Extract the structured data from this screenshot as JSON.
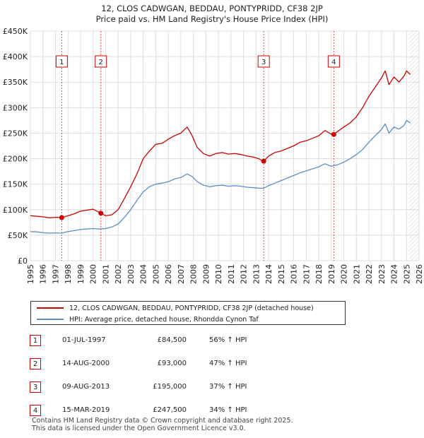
{
  "chart_data": {
    "type": "line",
    "title": "12, CLOS CADWGAN, BEDDAU, PONTYPRIDD, CF38 2JP",
    "subtitle": "Price paid vs. HM Land Registry's House Price Index (HPI)",
    "xlim": [
      1995,
      2026
    ],
    "ylim": [
      0,
      450000
    ],
    "x_ticks": [
      "1995",
      "1996",
      "1997",
      "1998",
      "1999",
      "2000",
      "2001",
      "2002",
      "2003",
      "2004",
      "2005",
      "2006",
      "2007",
      "2008",
      "2009",
      "2010",
      "2011",
      "2012",
      "2013",
      "2014",
      "2015",
      "2016",
      "2017",
      "2018",
      "2019",
      "2020",
      "2021",
      "2022",
      "2023",
      "2024",
      "2025",
      "2026"
    ],
    "y_ticks": [
      {
        "value": 0,
        "label": "£0"
      },
      {
        "value": 50000,
        "label": "£50K"
      },
      {
        "value": 100000,
        "label": "£100K"
      },
      {
        "value": 150000,
        "label": "£150K"
      },
      {
        "value": 200000,
        "label": "£200K"
      },
      {
        "value": 250000,
        "label": "£250K"
      },
      {
        "value": 300000,
        "label": "£300K"
      },
      {
        "value": 350000,
        "label": "£350K"
      },
      {
        "value": 400000,
        "label": "£400K"
      },
      {
        "value": 450000,
        "label": "£450K"
      }
    ],
    "series": [
      {
        "name": "12, CLOS CADWGAN, BEDDAU, PONTYPRIDD, CF38 2JP (detached house)",
        "color": "#cc0000",
        "x": [
          1995.0,
          1995.5,
          1996.0,
          1996.5,
          1997.0,
          1997.5,
          1998.0,
          1998.5,
          1999.0,
          1999.5,
          2000.0,
          2000.62,
          2001.0,
          2001.5,
          2002.0,
          2002.5,
          2003.0,
          2003.5,
          2004.0,
          2004.5,
          2005.0,
          2005.5,
          2006.0,
          2006.5,
          2007.0,
          2007.5,
          2007.9,
          2008.3,
          2008.8,
          2009.3,
          2009.8,
          2010.3,
          2010.8,
          2011.3,
          2011.8,
          2012.3,
          2012.8,
          2013.2,
          2013.61,
          2014.0,
          2014.5,
          2015.0,
          2015.5,
          2016.0,
          2016.5,
          2017.0,
          2017.5,
          2018.0,
          2018.5,
          2019.0,
          2019.2,
          2019.6,
          2020.0,
          2020.5,
          2021.0,
          2021.5,
          2022.0,
          2022.5,
          2023.0,
          2023.3,
          2023.6,
          2024.0,
          2024.4,
          2024.8,
          2025.0,
          2025.3
        ],
        "values": [
          88000,
          87000,
          86000,
          84000,
          85000,
          84500,
          88000,
          92000,
          97000,
          99000,
          101000,
          93000,
          88000,
          90000,
          100000,
          122000,
          145000,
          170000,
          200000,
          215000,
          228000,
          230000,
          238000,
          245000,
          250000,
          262000,
          245000,
          222000,
          210000,
          205000,
          210000,
          212000,
          209000,
          210000,
          208000,
          205000,
          203000,
          200000,
          195000,
          205000,
          212000,
          215000,
          220000,
          225000,
          232000,
          235000,
          240000,
          245000,
          255000,
          248000,
          247500,
          255000,
          262000,
          270000,
          282000,
          300000,
          322000,
          340000,
          358000,
          372000,
          345000,
          360000,
          350000,
          362000,
          372000,
          365000
        ]
      },
      {
        "name": "HPI: Average price, detached house, Rhondda Cynon Taf",
        "color": "#5b8ec5",
        "x": [
          1995.0,
          1995.5,
          1996.0,
          1996.5,
          1997.0,
          1997.5,
          1998.0,
          1998.5,
          1999.0,
          1999.5,
          2000.0,
          2000.5,
          2001.0,
          2001.5,
          2002.0,
          2002.5,
          2003.0,
          2003.5,
          2004.0,
          2004.5,
          2005.0,
          2005.5,
          2006.0,
          2006.5,
          2007.0,
          2007.5,
          2007.9,
          2008.3,
          2008.8,
          2009.3,
          2009.8,
          2010.3,
          2010.8,
          2011.3,
          2011.8,
          2012.3,
          2012.8,
          2013.2,
          2013.6,
          2014.0,
          2014.5,
          2015.0,
          2015.5,
          2016.0,
          2016.5,
          2017.0,
          2017.5,
          2018.0,
          2018.5,
          2019.0,
          2019.5,
          2020.0,
          2020.5,
          2021.0,
          2021.5,
          2022.0,
          2022.5,
          2023.0,
          2023.3,
          2023.6,
          2024.0,
          2024.4,
          2024.8,
          2025.0,
          2025.3
        ],
        "values": [
          57000,
          56500,
          55000,
          54000,
          54500,
          54000,
          57000,
          59000,
          61000,
          62000,
          63000,
          62000,
          63000,
          66000,
          72000,
          85000,
          100000,
          118000,
          135000,
          145000,
          150000,
          152000,
          155000,
          160000,
          163000,
          170000,
          165000,
          155000,
          148000,
          145000,
          147000,
          148000,
          146000,
          147000,
          146000,
          144000,
          143000,
          142000,
          142000,
          147000,
          152000,
          157000,
          162000,
          167000,
          172000,
          176000,
          180000,
          184000,
          190000,
          185000,
          188000,
          193000,
          200000,
          208000,
          218000,
          232000,
          245000,
          257000,
          268000,
          250000,
          262000,
          258000,
          265000,
          275000,
          270000
        ]
      }
    ],
    "sales": [
      {
        "label": "1",
        "x": 1997.5,
        "value": 84500
      },
      {
        "label": "2",
        "x": 2000.62,
        "value": 93000
      },
      {
        "label": "3",
        "x": 2013.61,
        "value": 195000
      },
      {
        "label": "4",
        "x": 2019.2,
        "value": 247500
      }
    ],
    "future_from": 2025.2
  },
  "legend": {
    "house": "12, CLOS CADWGAN, BEDDAU, PONTYPRIDD, CF38 2JP (detached house)",
    "hpi": "HPI: Average price, detached house, Rhondda Cynon Taf"
  },
  "sales_table": [
    {
      "num": "1",
      "date": "01-JUL-1997",
      "price": "£84,500",
      "hpi": "56% ↑ HPI"
    },
    {
      "num": "2",
      "date": "14-AUG-2000",
      "price": "£93,000",
      "hpi": "47% ↑ HPI"
    },
    {
      "num": "3",
      "date": "09-AUG-2013",
      "price": "£195,000",
      "hpi": "37% ↑ HPI"
    },
    {
      "num": "4",
      "date": "15-MAR-2019",
      "price": "£247,500",
      "hpi": "34% ↑ HPI"
    }
  ],
  "footer": {
    "line1": "Contains HM Land Registry data © Crown copyright and database right 2025.",
    "line2": "This data is licensed under the Open Government Licence v3.0."
  },
  "colors": {
    "house": "#cc0000",
    "hpi": "#5b8ec5",
    "vline": "#cc0000"
  }
}
